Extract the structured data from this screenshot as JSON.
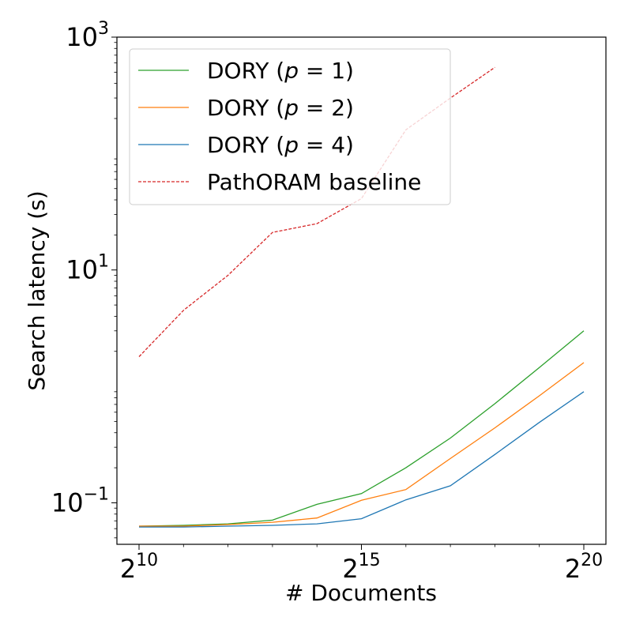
{
  "chart_data": {
    "type": "line",
    "xlabel": "# Documents",
    "ylabel": "Search latency (s)",
    "xscale": "log2",
    "yscale": "log10",
    "xlim": [
      1024,
      1048576
    ],
    "ylim": [
      0.044,
      1000
    ],
    "grid": false,
    "legend_position": "upper-left",
    "x_ticks": [
      {
        "value": 1024,
        "base": "2",
        "exp": "10"
      },
      {
        "value": 32768,
        "base": "2",
        "exp": "15"
      },
      {
        "value": 1048576,
        "base": "2",
        "exp": "20"
      }
    ],
    "y_ticks": [
      {
        "value": 0.1,
        "base": "10",
        "exp": "−1"
      },
      {
        "value": 10,
        "base": "10",
        "exp": "1"
      },
      {
        "value": 1000,
        "base": "10",
        "exp": "3"
      }
    ],
    "x": [
      1024,
      2048,
      4096,
      8192,
      16384,
      32768,
      65536,
      131072,
      262144,
      524288,
      1048576
    ],
    "series": [
      {
        "name": "DORY (p = 1)",
        "label_prefix": "DORY (",
        "label_var": "p",
        "label_suffix": " = 1)",
        "color": "#2ca02c",
        "dash": "solid",
        "values": [
          0.063,
          0.064,
          0.066,
          0.071,
          0.097,
          0.12,
          0.2,
          0.36,
          0.71,
          1.45,
          3.0
        ]
      },
      {
        "name": "DORY (p = 2)",
        "label_prefix": "DORY (",
        "label_var": "p",
        "label_suffix": " = 2)",
        "color": "#ff7f0e",
        "dash": "solid",
        "values": [
          0.063,
          0.063,
          0.065,
          0.068,
          0.074,
          0.105,
          0.13,
          0.24,
          0.44,
          0.83,
          1.6
        ]
      },
      {
        "name": "DORY (p = 4)",
        "label_prefix": "DORY (",
        "label_var": "p",
        "label_suffix": " = 4)",
        "color": "#1f77b4",
        "dash": "solid",
        "values": [
          0.062,
          0.062,
          0.063,
          0.064,
          0.066,
          0.073,
          0.106,
          0.14,
          0.26,
          0.49,
          0.9
        ]
      },
      {
        "name": "PathORAM baseline",
        "label_prefix": "PathORAM baseline",
        "label_var": "",
        "label_suffix": "",
        "color": "#d62728",
        "dash": "dashed",
        "values": [
          1.8,
          4.5,
          9.0,
          21.0,
          25.0,
          41.0,
          160.0,
          300.0,
          550.0,
          null,
          null
        ]
      }
    ]
  }
}
